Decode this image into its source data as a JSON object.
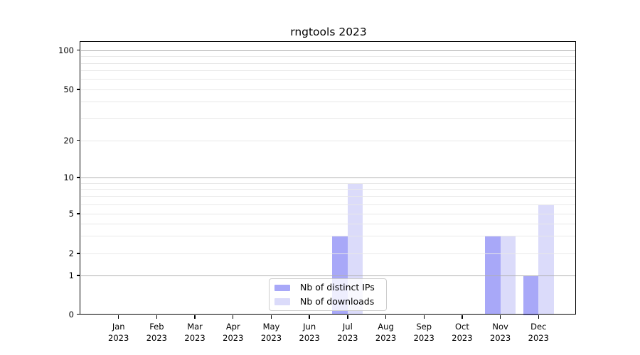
{
  "chart_data": {
    "type": "bar",
    "title": "rngtools 2023",
    "categories": [
      "Jan 2023",
      "Feb 2023",
      "Mar 2023",
      "Apr 2023",
      "May 2023",
      "Jun 2023",
      "Jul 2023",
      "Aug 2023",
      "Sep 2023",
      "Oct 2023",
      "Nov 2023",
      "Dec 2023"
    ],
    "series": [
      {
        "name": "Nb of distinct IPs",
        "color": "#a8a8f8",
        "values": [
          0,
          0,
          0,
          0,
          0,
          0,
          3,
          0,
          0,
          0,
          3,
          1
        ]
      },
      {
        "name": "Nb of downloads",
        "color": "#dbdbfa",
        "values": [
          0,
          0,
          0,
          0,
          0,
          0,
          9,
          0,
          0,
          0,
          3,
          6
        ]
      }
    ],
    "y_axis": {
      "ticks": [
        0,
        1,
        2,
        5,
        10,
        20,
        50,
        100
      ],
      "scale": "log-like with linear segment below 1",
      "top_value": 100
    },
    "x_axis": {
      "tick_label_lines": 2
    },
    "legend": {
      "position": "bottom-center-inside",
      "items": [
        "Nb of distinct IPs",
        "Nb of downloads"
      ]
    },
    "grid": {
      "on": true,
      "major_values": [
        1,
        10,
        100
      ],
      "minor_values": [
        2,
        3,
        4,
        5,
        6,
        7,
        8,
        9,
        20,
        30,
        40,
        50,
        60,
        70,
        80,
        90
      ],
      "major_color": "#b0b0b0",
      "minor_color": "#e8e8e8"
    },
    "colors": {
      "background": "#ffffff",
      "axis": "#000000",
      "text": "#000000"
    }
  }
}
